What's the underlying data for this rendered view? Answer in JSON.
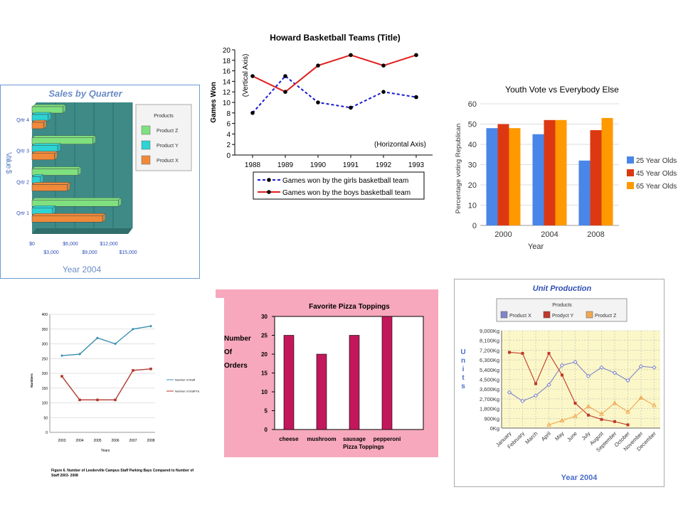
{
  "chart_data": [
    {
      "id": "sales",
      "type": "bar",
      "orientation": "horizontal",
      "title": "Sales by Quarter",
      "xlabel": "Year 2004",
      "ylabel": "Value $",
      "categories": [
        "Qrtr 1",
        "Qrtr 2",
        "Qrtr 3",
        "Qrtr 4"
      ],
      "xticks_top": [
        "$0",
        "$6,000",
        "$12,000"
      ],
      "xticks_bottom": [
        "$3,000",
        "$9,000",
        "$15,000"
      ],
      "xlim": [
        0,
        15000
      ],
      "legend_title": "Products",
      "series": [
        {
          "name": "Product Z",
          "values": [
            13500,
            7200,
            9500,
            4800
          ],
          "color": "#7fe07f"
        },
        {
          "name": "Product Y",
          "values": [
            3200,
            1300,
            4000,
            2500
          ],
          "color": "#2ed3d3"
        },
        {
          "name": "Product X",
          "values": [
            11000,
            5500,
            3500,
            1800
          ],
          "color": "#f08a3a"
        }
      ],
      "legend_position": "right",
      "colors": {
        "plot_bg": "#3d8a87",
        "frame": "#6b9bd1",
        "title": "#6b8cc7"
      }
    },
    {
      "id": "howard",
      "type": "line",
      "title": "Howard Basketball Teams (Title)",
      "xlabel": "(Horizontal Axis)",
      "ylabel": "Games Won",
      "ylabel2": "(Vertical Axis)",
      "x": [
        "1988",
        "1989",
        "1990",
        "1991",
        "1992",
        "1993"
      ],
      "ylim": [
        0,
        20
      ],
      "yticks": [
        "0",
        "2",
        "4",
        "6",
        "8",
        "10",
        "12",
        "14",
        "16",
        "18",
        "20"
      ],
      "series": [
        {
          "name": "Games won by the girls basketball team",
          "values": [
            8,
            15,
            10,
            9,
            12,
            11
          ],
          "color": "#1a1ad1",
          "dashed": true
        },
        {
          "name": "Games won by the boys basketball team",
          "values": [
            15,
            12,
            17,
            19,
            17,
            19
          ],
          "color": "#e01f1f",
          "dashed": false
        }
      ],
      "legend_position": "bottom"
    },
    {
      "id": "youth",
      "type": "bar",
      "title": "Youth Vote vs Everybody Else",
      "xlabel": "Year",
      "ylabel": "Percentage voting Republican",
      "categories": [
        "2000",
        "2004",
        "2008"
      ],
      "ylim": [
        0,
        60
      ],
      "yticks": [
        "0",
        "10",
        "20",
        "30",
        "40",
        "50",
        "60"
      ],
      "series": [
        {
          "name": "25 Year Olds",
          "values": [
            48,
            45,
            32
          ],
          "color": "#4a86e8"
        },
        {
          "name": "45 Year Olds",
          "values": [
            50,
            52,
            47
          ],
          "color": "#dc3912"
        },
        {
          "name": "65 Year Olds",
          "values": [
            48,
            52,
            53
          ],
          "color": "#ff9900"
        }
      ],
      "legend_position": "right",
      "grid": true
    },
    {
      "id": "staff",
      "type": "line",
      "title": "",
      "xlabel": "Years",
      "ylabel": "Numbers",
      "x": [
        "2003",
        "2004",
        "2005",
        "2006",
        "2007",
        "2008"
      ],
      "ylim": [
        0,
        400
      ],
      "yticks": [
        "0",
        "50",
        "100",
        "150",
        "200",
        "250",
        "300",
        "350",
        "400"
      ],
      "series": [
        {
          "name": "Number of Staff",
          "values": [
            260,
            265,
            320,
            300,
            350,
            360
          ],
          "color": "#3a8fb0"
        },
        {
          "name": "Number of Staff Parking Bays",
          "values": [
            190,
            110,
            110,
            110,
            210,
            215
          ],
          "color": "#b03a32"
        }
      ],
      "caption": "Figure 6. Number of Leederville Campus Staff Parking Bays Compared to Number of Staff 2003- 2008",
      "legend_position": "right",
      "grid": true
    },
    {
      "id": "pizza",
      "type": "bar",
      "title": "Favorite Pizza Toppings",
      "xlabel": "Pizza Toppings",
      "ylabel_lines": [
        "Number",
        "Of",
        "Orders"
      ],
      "categories": [
        "cheese",
        "mushroom",
        "sausage",
        "pepperoni"
      ],
      "values": [
        25,
        20,
        25,
        30
      ],
      "ylim": [
        0,
        30
      ],
      "yticks": [
        "0",
        "5",
        "10",
        "15",
        "20",
        "25",
        "30"
      ],
      "colors": {
        "bar": "#c2185b",
        "bg": "#f7a8bd"
      }
    },
    {
      "id": "unit",
      "type": "line",
      "title": "Unit Production",
      "xlabel": "Year 2004",
      "ylabel": "Units",
      "x": [
        "January",
        "February",
        "March",
        "April",
        "May",
        "June",
        "July",
        "August",
        "September",
        "October",
        "November",
        "December"
      ],
      "ylim": [
        0,
        9000
      ],
      "yticks": [
        "0Kg",
        "900Kg",
        "1,800Kg",
        "2,700Kg",
        "3,600Kg",
        "4,500Kg",
        "5,400Kg",
        "6,300Kg",
        "7,200Kg",
        "8,100Kg",
        "9,000Kg"
      ],
      "legend_title": "Products",
      "series": [
        {
          "name": "Product X",
          "values": [
            3300,
            2500,
            3000,
            4000,
            5800,
            6100,
            4800,
            5600,
            5100,
            4400,
            5700,
            5600
          ],
          "color": "#7f86c9"
        },
        {
          "name": "Prodyct Y",
          "values": [
            7000,
            6900,
            4100,
            6900,
            4900,
            2300,
            1200,
            800,
            600,
            300,
            null,
            null
          ],
          "color": "#c0392b"
        },
        {
          "name": "Product Z",
          "values": [
            null,
            null,
            null,
            300,
            700,
            1100,
            2000,
            1300,
            2300,
            1500,
            2800,
            2100
          ],
          "color": "#f0a855"
        }
      ],
      "legend_position": "top",
      "grid": true,
      "colors": {
        "plot_bg": "#fbf7c8",
        "title": "#2f4eb5"
      }
    }
  ]
}
